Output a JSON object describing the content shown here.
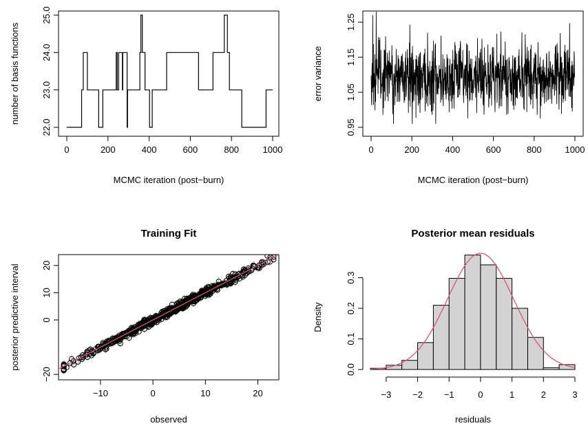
{
  "chart_data": [
    {
      "type": "line",
      "title": "",
      "xlabel": "MCMC iteration (post−burn)",
      "ylabel": "number of basis functions",
      "xlim": [
        0,
        1000
      ],
      "ylim": [
        22,
        25
      ],
      "xticks": [
        "0",
        "200",
        "400",
        "600",
        "800",
        "1000"
      ],
      "yticks": [
        "22.0",
        "23.0",
        "24.0",
        "25.0"
      ],
      "step": true,
      "x": [
        0,
        72,
        80,
        100,
        155,
        175,
        210,
        240,
        245,
        252,
        270,
        272,
        282,
        293,
        295,
        350,
        355,
        360,
        367,
        380,
        402,
        415,
        475,
        480,
        485,
        640,
        710,
        755,
        765,
        780,
        790,
        800,
        800,
        850,
        870,
        875,
        940,
        968,
        980,
        1000
      ],
      "y": [
        22,
        23,
        24,
        23,
        22,
        23,
        23,
        24,
        23,
        24,
        23,
        24,
        24,
        22,
        23,
        23,
        24,
        25,
        24,
        23,
        22,
        23,
        23,
        23,
        24,
        23,
        24,
        24,
        25,
        24,
        23,
        23,
        23,
        22,
        22,
        22,
        22,
        23,
        23,
        23
      ]
    },
    {
      "type": "line",
      "title": "",
      "xlabel": "MCMC iteration (post−burn)",
      "ylabel": "error variance",
      "xlim": [
        0,
        1000
      ],
      "ylim": [
        0.95,
        1.27
      ],
      "xticks": [
        "0",
        "200",
        "400",
        "600",
        "800",
        "1000"
      ],
      "yticks": [
        "0.95",
        "1.05",
        "1.15",
        "1.25"
      ],
      "series_summary": {
        "n": 1000,
        "mean": 1.095,
        "sd": 0.05,
        "min": 0.96,
        "max": 1.28
      }
    },
    {
      "type": "scatter",
      "title": "Training Fit",
      "xlabel": "observed",
      "ylabel": "posterior predictive interval",
      "xlim": [
        -18,
        24
      ],
      "ylim": [
        -22,
        24
      ],
      "xticks": [
        "−10",
        "0",
        "10",
        "20"
      ],
      "yticks": [
        "−20",
        "0",
        "10",
        "20"
      ],
      "reference_line": {
        "intercept": 0,
        "slope": 1,
        "color": "#df536b"
      },
      "point_summary": {
        "n": 600,
        "x_range": [
          -17,
          23
        ],
        "y_equals_x_noise_sd": 0.7,
        "interval_halfwidth": 1.5
      },
      "point_color": "#000000",
      "interval_color": "#bebebe"
    },
    {
      "type": "bar",
      "title": "Posterior mean residuals",
      "xlabel": "residuals",
      "ylabel": "Density",
      "xlim": [
        -3.5,
        3.0
      ],
      "ylim": [
        0,
        0.38
      ],
      "xticks": [
        "−3",
        "−2",
        "−1",
        "0",
        "1",
        "2",
        "3"
      ],
      "yticks": [
        "0.0",
        "0.1",
        "0.2",
        "0.3"
      ],
      "bin_edges": [
        -3.5,
        -3.0,
        -2.5,
        -2.0,
        -1.5,
        -1.0,
        -0.5,
        0.0,
        0.5,
        1.0,
        1.5,
        2.0,
        2.5,
        3.0
      ],
      "values": [
        0.004,
        0.014,
        0.03,
        0.088,
        0.21,
        0.298,
        0.374,
        0.342,
        0.298,
        0.2,
        0.105,
        0.006,
        0.016
      ],
      "bar_fill": "#d3d3d3",
      "density_curve": {
        "mean": 0.0,
        "sd": 1.05,
        "color": "#df536b"
      }
    }
  ]
}
